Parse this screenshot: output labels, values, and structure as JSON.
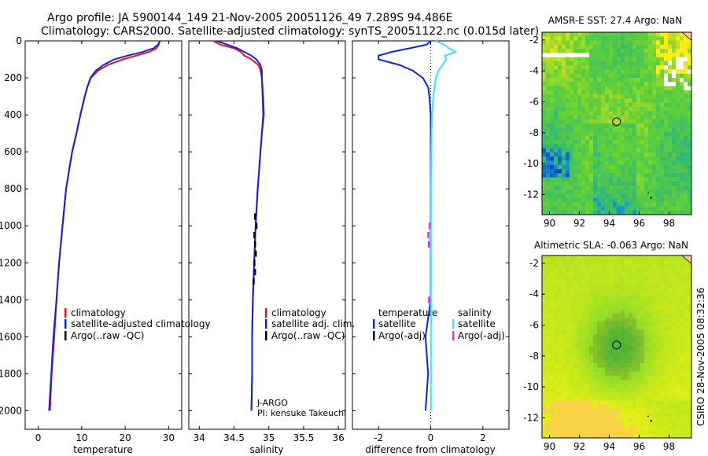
{
  "header": {
    "title_line1": "Argo profile: JA 5900144_149 21-Nov-2005 20051126_49 7.289S 94.486E",
    "title_line2": "Climatology: CARS2000. Satellite-adjusted climatology: synTS_20051122.nc (0.015d later)"
  },
  "side_stamp": "CSIRO 28-Nov-2005 08:32:36",
  "colors": {
    "climatology": "#e8101a",
    "satellite": "#1020e0",
    "argo": "#000000",
    "satellite_diff": "#34e8f0",
    "argo_adj_diff": "#e030e0"
  },
  "chart_data": [
    {
      "type": "line",
      "id": "temperature",
      "xlabel": "temperature",
      "ylabel": "",
      "xlim": [
        -3,
        33
      ],
      "ylim": [
        2100,
        0
      ],
      "xticks": [
        0,
        10,
        20,
        30
      ],
      "yticks": [
        0,
        200,
        400,
        600,
        800,
        1000,
        1200,
        1400,
        1600,
        1800,
        2000
      ],
      "legend": [
        "climatology",
        "satellite-adjusted climatology",
        "Argo(..raw -QC)"
      ],
      "series": [
        {
          "name": "climatology",
          "depth": [
            0,
            20,
            40,
            60,
            80,
            100,
            130,
            160,
            200,
            250,
            300,
            400,
            500,
            600,
            700,
            800,
            1000,
            1200,
            1400,
            1600,
            1800,
            2000
          ],
          "values": [
            27.9,
            27.7,
            27.2,
            25.5,
            22.5,
            19.5,
            16.0,
            13.8,
            12.1,
            11.3,
            10.7,
            9.7,
            8.8,
            7.8,
            7.1,
            6.4,
            5.6,
            4.8,
            4.2,
            3.7,
            3.1,
            2.7
          ]
        },
        {
          "name": "satellite-adjusted climatology",
          "depth": [
            0,
            20,
            40,
            60,
            80,
            100,
            130,
            160,
            200,
            250,
            300,
            400,
            500,
            600,
            700,
            800,
            1000,
            1200,
            1400,
            1600,
            1800,
            2000
          ],
          "values": [
            28.0,
            27.6,
            26.5,
            24.0,
            20.5,
            17.5,
            15.0,
            13.3,
            12.0,
            11.3,
            10.7,
            9.7,
            8.8,
            7.8,
            7.1,
            6.4,
            5.6,
            4.8,
            4.2,
            3.5,
            3.0,
            2.5
          ]
        }
      ]
    },
    {
      "type": "line",
      "id": "salinity",
      "xlabel": "salinity",
      "ylabel": "",
      "xlim": [
        33.85,
        36.1
      ],
      "ylim": [
        2100,
        0
      ],
      "xticks": [
        34,
        34.5,
        35,
        35.5,
        36
      ],
      "xtick_labels": [
        "34",
        "34.5",
        "35",
        "35.5",
        "36"
      ],
      "legend": [
        "climatology",
        "satellite adj. clim.",
        "Argo(..raw -QC)"
      ],
      "annotation": [
        "J-ARGO",
        "PI: kensuke Takeuchi"
      ],
      "series": [
        {
          "name": "climatology",
          "depth": [
            0,
            20,
            40,
            60,
            80,
            100,
            130,
            160,
            200,
            300,
            400,
            500,
            600,
            800,
            1000,
            1200,
            1400,
            1600,
            1800,
            2000
          ],
          "values": [
            34.2,
            34.3,
            34.5,
            34.6,
            34.65,
            34.75,
            34.85,
            34.88,
            34.9,
            34.92,
            34.93,
            34.9,
            34.88,
            34.84,
            34.81,
            34.79,
            34.77,
            34.76,
            34.76,
            34.75
          ]
        },
        {
          "name": "satellite adj. clim.",
          "depth": [
            0,
            20,
            40,
            60,
            80,
            100,
            130,
            160,
            200,
            300,
            400,
            500,
            600,
            800,
            1000,
            1200,
            1400,
            1600,
            1800,
            2000
          ],
          "values": [
            34.25,
            34.4,
            34.55,
            34.65,
            34.75,
            34.82,
            34.88,
            34.9,
            34.9,
            34.91,
            34.92,
            34.9,
            34.88,
            34.84,
            34.81,
            34.79,
            34.77,
            34.76,
            34.76,
            34.75
          ]
        },
        {
          "name": "Argo(..raw -QC)",
          "depth": [
            950,
            1000,
            1050,
            1100,
            1150,
            1200,
            1250,
            1300
          ],
          "values": [
            34.8,
            34.82,
            34.79,
            34.8,
            34.81,
            34.79,
            34.8,
            34.78
          ]
        }
      ]
    },
    {
      "type": "line",
      "id": "difference",
      "xlabel": "difference from climatology",
      "ylabel": "",
      "xlim": [
        -3.0,
        3.0
      ],
      "ylim": [
        2100,
        0
      ],
      "xticks": [
        -2,
        0,
        2
      ],
      "legend_left_title": "temperature",
      "legend_right_title": "salinity",
      "legend_left": [
        "satellite",
        "Argo(-adj)"
      ],
      "legend_right": [
        "satellite",
        "Argo(-adj)"
      ],
      "series": [
        {
          "name": "temperature satellite",
          "depth": [
            0,
            20,
            40,
            60,
            80,
            100,
            130,
            160,
            200,
            250,
            300,
            400,
            500,
            600,
            800,
            1000,
            1200,
            1400,
            1600,
            1800,
            2000
          ],
          "values": [
            0.0,
            -0.15,
            -0.8,
            -1.5,
            -2.0,
            -2.0,
            -1.2,
            -0.7,
            -0.3,
            -0.1,
            -0.05,
            0.0,
            0.0,
            0.0,
            0.0,
            0.0,
            0.0,
            0.0,
            -0.2,
            -0.1,
            -0.2
          ]
        },
        {
          "name": "salinity satellite",
          "depth": [
            0,
            20,
            40,
            60,
            80,
            100,
            130,
            160,
            200,
            300,
            400,
            600,
            800,
            1000,
            1200,
            1400,
            1600,
            1800,
            2000
          ],
          "values": [
            0.2,
            0.5,
            0.7,
            0.95,
            0.55,
            0.6,
            0.45,
            0.3,
            0.2,
            0.1,
            0.05,
            0.02,
            0.01,
            0.01,
            0.01,
            0.01,
            0.01,
            0.01,
            0.01
          ]
        },
        {
          "name": "salinity Argo(-adj)",
          "depth": [
            1000,
            1050,
            1100,
            1400
          ],
          "values": [
            -0.05,
            -0.1,
            -0.08,
            -0.07
          ]
        }
      ]
    },
    {
      "type": "heatmap",
      "id": "sst_map",
      "title": "AMSR-E SST: 27.4 Argo: NaN",
      "xlim": [
        89.5,
        99.5
      ],
      "ylim": [
        -13.3,
        -1.5
      ],
      "xticks": [
        90,
        92,
        94,
        96,
        98
      ],
      "yticks": [
        -2,
        -4,
        -6,
        -8,
        -10,
        -12
      ],
      "marker": {
        "lon": 94.486,
        "lat": -7.289
      }
    },
    {
      "type": "heatmap",
      "id": "sla_map",
      "title": "Altimetric SLA: -0.063 Argo: NaN",
      "xlim": [
        89.5,
        99.5
      ],
      "ylim": [
        -13.3,
        -1.5
      ],
      "xticks": [
        90,
        92,
        94,
        96,
        98
      ],
      "yticks": [
        -2,
        -4,
        -6,
        -8,
        -10,
        -12
      ],
      "marker": {
        "lon": 94.486,
        "lat": -7.289
      }
    }
  ]
}
